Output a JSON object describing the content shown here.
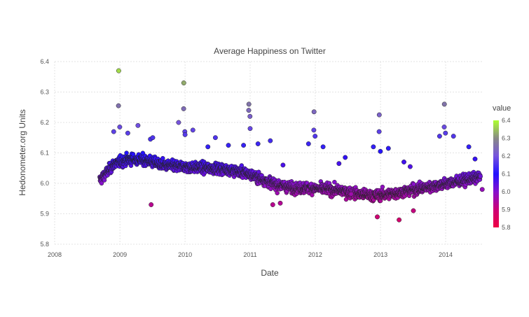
{
  "chart_data": {
    "type": "scatter",
    "title": "Average Happiness on Twitter",
    "xlabel": "Date",
    "ylabel": "Hedonometer.org Units",
    "x_ticks": [
      "2008",
      "2009",
      "2010",
      "2011",
      "2012",
      "2013",
      "2014"
    ],
    "y_ticks": [
      "5.8",
      "5.9",
      "6.0",
      "6.1",
      "6.2",
      "6.3",
      "6.4"
    ],
    "xlim": [
      "2008-01-01",
      "2014-08-01"
    ],
    "ylim": [
      5.8,
      6.4
    ],
    "grid": true,
    "legend": {
      "title": "value",
      "placement": "right",
      "labels": [
        "6.4",
        "6.3",
        "6.2",
        "6.1",
        "6.0",
        "5.9",
        "5.8"
      ],
      "colors": [
        "#adff2f",
        "#888888",
        "#7755dd",
        "#2211ff",
        "#8811cc",
        "#cc0077",
        "#ee0044"
      ]
    },
    "series_trend": [
      [
        "2008-09-10",
        6.01
      ],
      [
        "2008-12-01",
        6.065
      ],
      [
        "2009-03-01",
        6.08
      ],
      [
        "2009-06-01",
        6.075
      ],
      [
        "2009-09-01",
        6.06
      ],
      [
        "2009-12-01",
        6.055
      ],
      [
        "2010-03-01",
        6.052
      ],
      [
        "2010-06-01",
        6.05
      ],
      [
        "2010-09-01",
        6.045
      ],
      [
        "2010-12-01",
        6.035
      ],
      [
        "2011-03-01",
        6.015
      ],
      [
        "2011-06-01",
        5.995
      ],
      [
        "2011-09-01",
        5.985
      ],
      [
        "2011-12-01",
        5.985
      ],
      [
        "2012-03-01",
        5.98
      ],
      [
        "2012-06-01",
        5.975
      ],
      [
        "2012-09-01",
        5.965
      ],
      [
        "2012-12-01",
        5.96
      ],
      [
        "2013-03-01",
        5.965
      ],
      [
        "2013-06-01",
        5.975
      ],
      [
        "2013-09-01",
        5.985
      ],
      [
        "2013-12-01",
        5.995
      ],
      [
        "2014-03-01",
        6.005
      ],
      [
        "2014-07-15",
        6.02
      ]
    ],
    "outliers": [
      [
        "2008-12-25",
        6.37
      ],
      [
        "2008-12-24",
        6.255
      ],
      [
        "2008-12-31",
        6.185
      ],
      [
        "2008-11-27",
        6.17
      ],
      [
        "2009-02-14",
        6.165
      ],
      [
        "2009-04-12",
        6.19
      ],
      [
        "2009-06-21",
        6.145
      ],
      [
        "2009-07-04",
        6.15
      ],
      [
        "2009-06-25",
        5.93
      ],
      [
        "2009-11-26",
        6.2
      ],
      [
        "2009-12-25",
        6.33
      ],
      [
        "2009-12-24",
        6.245
      ],
      [
        "2009-12-31",
        6.17
      ],
      [
        "2010-01-01",
        6.16
      ],
      [
        "2010-02-14",
        6.175
      ],
      [
        "2010-05-09",
        6.12
      ],
      [
        "2010-06-20",
        6.15
      ],
      [
        "2010-09-01",
        6.125
      ],
      [
        "2010-11-25",
        6.125
      ],
      [
        "2010-12-25",
        6.26
      ],
      [
        "2010-12-24",
        6.24
      ],
      [
        "2010-12-31",
        6.22
      ],
      [
        "2011-01-01",
        6.18
      ],
      [
        "2011-02-14",
        6.13
      ],
      [
        "2011-04-24",
        6.14
      ],
      [
        "2011-05-08",
        5.93
      ],
      [
        "2011-06-19",
        5.935
      ],
      [
        "2011-07-04",
        6.06
      ],
      [
        "2011-11-24",
        6.13
      ],
      [
        "2011-12-25",
        6.235
      ],
      [
        "2011-12-24",
        6.175
      ],
      [
        "2011-12-31",
        6.155
      ],
      [
        "2012-02-14",
        6.12
      ],
      [
        "2012-05-13",
        6.065
      ],
      [
        "2012-06-17",
        6.085
      ],
      [
        "2012-07-20",
        5.965
      ],
      [
        "2012-11-22",
        6.12
      ],
      [
        "2012-12-25",
        6.225
      ],
      [
        "2012-12-24",
        6.17
      ],
      [
        "2012-12-31",
        6.105
      ],
      [
        "2012-12-14",
        5.89
      ],
      [
        "2013-02-14",
        6.115
      ],
      [
        "2013-04-15",
        5.88
      ],
      [
        "2013-05-12",
        6.07
      ],
      [
        "2013-06-16",
        6.055
      ],
      [
        "2013-07-04",
        5.91
      ],
      [
        "2013-11-28",
        6.155
      ],
      [
        "2013-12-25",
        6.26
      ],
      [
        "2013-12-24",
        6.185
      ],
      [
        "2013-12-31",
        6.165
      ],
      [
        "2014-02-14",
        6.155
      ],
      [
        "2014-05-11",
        6.12
      ],
      [
        "2014-06-15",
        6.08
      ],
      [
        "2014-07-25",
        5.98
      ]
    ]
  }
}
